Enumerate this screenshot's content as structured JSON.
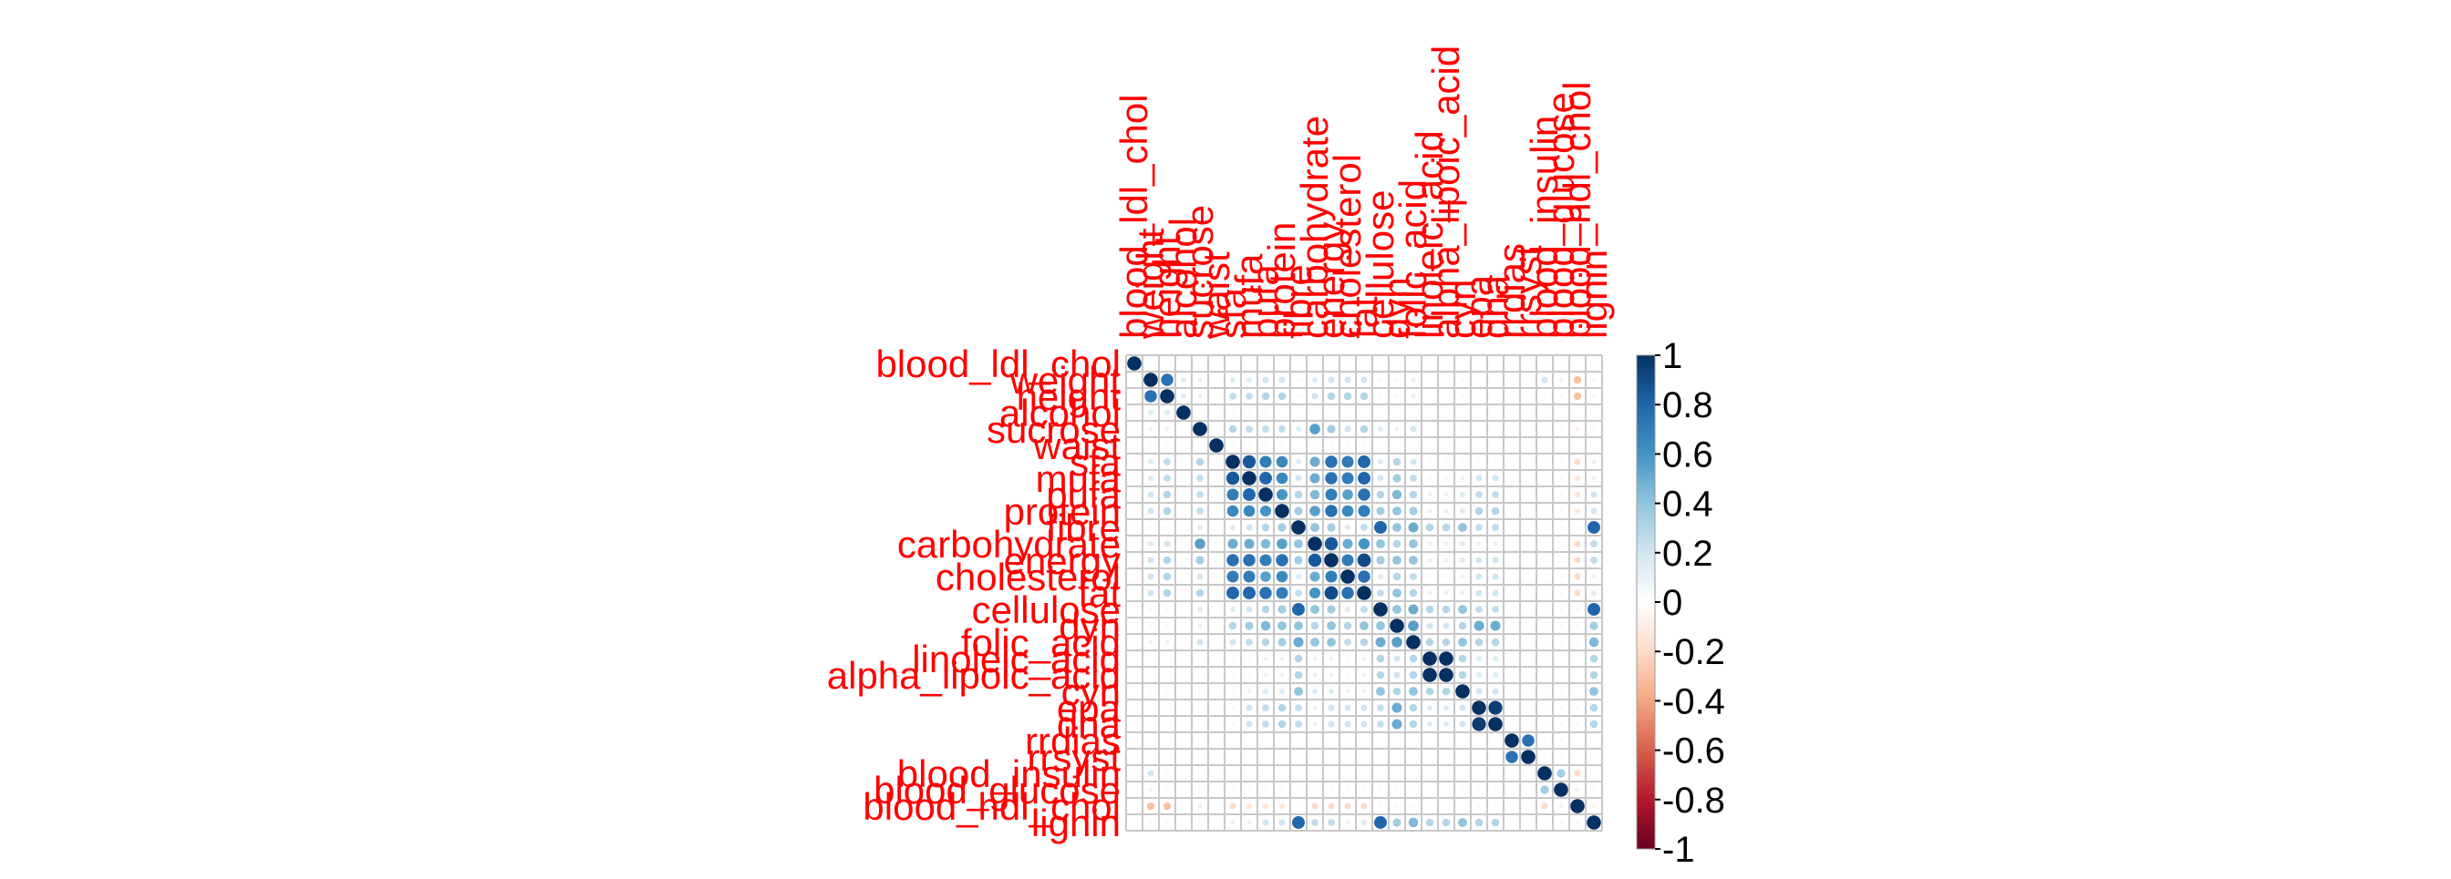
{
  "chart_data": {
    "type": "heatmap",
    "style": "correlation-circles",
    "title": "",
    "grid": true,
    "legend_position": "right",
    "label_color": "#ff0000",
    "variables": [
      "blood_ldl_chol",
      "weight",
      "height",
      "alcohol",
      "sucrose",
      "waist",
      "sfa",
      "mufa",
      "pufa",
      "protein",
      "fibre",
      "carbohydrate",
      "energy",
      "cholesterol",
      "fat",
      "cellulose",
      "dyn",
      "folic_acid",
      "linoleic_acid",
      "alpha_lipoic_acid",
      "cyn",
      "epa",
      "dha",
      "rrdias",
      "rrsyst",
      "blood_insulin",
      "blood_glucose",
      "blood_hdl_chol",
      "lignin"
    ],
    "values": [
      [
        1,
        0,
        0,
        0,
        0,
        0,
        0,
        0,
        0,
        0,
        0,
        0,
        0,
        0,
        0,
        0,
        0,
        0,
        0,
        0,
        0,
        0,
        0,
        0,
        0,
        0,
        0,
        0,
        0
      ],
      [
        0,
        1,
        0.75,
        0.15,
        0.1,
        0.05,
        0.15,
        0.15,
        0.2,
        0.2,
        0.05,
        0.15,
        0.2,
        0.2,
        0.2,
        0.05,
        0.05,
        0.1,
        0,
        0,
        0.05,
        0,
        0,
        0,
        0,
        0.2,
        0.1,
        -0.3,
        0.05
      ],
      [
        0,
        0.75,
        1,
        0.15,
        0.1,
        0.05,
        0.25,
        0.25,
        0.3,
        0.3,
        0.05,
        0.2,
        0.3,
        0.3,
        0.3,
        0.05,
        0.05,
        0.1,
        0,
        0,
        0.05,
        0,
        0,
        0,
        0,
        0.05,
        0.05,
        -0.3,
        0.05
      ],
      [
        0,
        0.15,
        0.15,
        1,
        0.05,
        0,
        0.05,
        0.05,
        0.05,
        0,
        0,
        0,
        0,
        0,
        0,
        0,
        0,
        0,
        0,
        0,
        0,
        0,
        0,
        0,
        0,
        0,
        0,
        0,
        0
      ],
      [
        0,
        0.1,
        0.1,
        0.05,
        1,
        0,
        0.3,
        0.25,
        0.25,
        0.25,
        0.15,
        0.55,
        0.35,
        0.2,
        0.3,
        0.15,
        0.1,
        0.2,
        0,
        0,
        0.05,
        0,
        0,
        0,
        0,
        0,
        0.05,
        -0.1,
        0.05
      ],
      [
        0,
        0.05,
        0.05,
        0,
        0,
        1,
        0.05,
        0.05,
        0.05,
        0.05,
        0,
        0.05,
        0.05,
        0.05,
        0.05,
        0,
        0,
        0,
        0,
        0,
        0,
        0,
        0,
        0,
        0,
        0,
        0,
        0,
        0
      ],
      [
        0,
        0.15,
        0.25,
        0.05,
        0.3,
        0.05,
        1,
        0.85,
        0.7,
        0.65,
        0.15,
        0.5,
        0.75,
        0.7,
        0.8,
        0.15,
        0.3,
        0.2,
        0.05,
        0.05,
        0.05,
        0.05,
        0.05,
        0,
        0,
        0,
        0.05,
        -0.2,
        0.1
      ],
      [
        0,
        0.15,
        0.25,
        0.05,
        0.25,
        0.05,
        0.85,
        1,
        0.8,
        0.65,
        0.2,
        0.5,
        0.75,
        0.7,
        0.8,
        0.2,
        0.35,
        0.25,
        0.05,
        0.05,
        0.1,
        0.2,
        0.2,
        0,
        0,
        0,
        0.05,
        -0.15,
        0.1
      ],
      [
        0,
        0.2,
        0.3,
        0.05,
        0.25,
        0.05,
        0.7,
        0.8,
        1,
        0.6,
        0.3,
        0.45,
        0.7,
        0.55,
        0.75,
        0.3,
        0.45,
        0.3,
        0.1,
        0.1,
        0.15,
        0.25,
        0.25,
        0,
        0,
        0,
        0.05,
        -0.15,
        0.2
      ],
      [
        0,
        0.2,
        0.3,
        0,
        0.25,
        0.05,
        0.65,
        0.65,
        0.6,
        1,
        0.35,
        0.55,
        0.75,
        0.65,
        0.7,
        0.35,
        0.4,
        0.35,
        0.1,
        0.1,
        0.15,
        0.3,
        0.3,
        0,
        0,
        0,
        0.05,
        -0.15,
        0.2
      ],
      [
        0,
        0.05,
        0.05,
        0,
        0.15,
        0,
        0.15,
        0.2,
        0.3,
        0.35,
        1,
        0.4,
        0.35,
        0.15,
        0.25,
        0.8,
        0.4,
        0.5,
        0.3,
        0.3,
        0.4,
        0.25,
        0.25,
        0,
        0,
        0,
        0.05,
        -0.05,
        0.8
      ],
      [
        0,
        0.15,
        0.2,
        0,
        0.55,
        0.05,
        0.5,
        0.5,
        0.45,
        0.55,
        0.4,
        1,
        0.85,
        0.5,
        0.6,
        0.4,
        0.3,
        0.4,
        0.1,
        0.1,
        0.15,
        0.1,
        0.1,
        0,
        0,
        0,
        0.05,
        -0.2,
        0.25
      ],
      [
        0,
        0.2,
        0.3,
        0,
        0.35,
        0.05,
        0.75,
        0.75,
        0.7,
        0.75,
        0.35,
        0.85,
        1,
        0.7,
        0.9,
        0.35,
        0.4,
        0.4,
        0.1,
        0.1,
        0.15,
        0.2,
        0.2,
        0,
        0,
        0,
        0.05,
        -0.2,
        0.25
      ],
      [
        0,
        0.2,
        0.3,
        0,
        0.2,
        0.05,
        0.7,
        0.7,
        0.55,
        0.65,
        0.15,
        0.5,
        0.7,
        1,
        0.75,
        0.15,
        0.3,
        0.25,
        0.05,
        0.05,
        0.1,
        0.2,
        0.2,
        0,
        0,
        0,
        0.05,
        -0.2,
        0.1
      ],
      [
        0,
        0.2,
        0.3,
        0,
        0.3,
        0.05,
        0.8,
        0.8,
        0.75,
        0.7,
        0.25,
        0.6,
        0.9,
        0.75,
        1,
        0.25,
        0.4,
        0.3,
        0.1,
        0.1,
        0.1,
        0.2,
        0.2,
        0,
        0,
        0,
        0.05,
        -0.2,
        0.15
      ],
      [
        0,
        0.05,
        0.05,
        0,
        0.15,
        0,
        0.15,
        0.2,
        0.3,
        0.35,
        0.8,
        0.4,
        0.35,
        0.15,
        0.25,
        1,
        0.4,
        0.5,
        0.3,
        0.3,
        0.4,
        0.25,
        0.25,
        0,
        0,
        0,
        0.05,
        -0.05,
        0.8
      ],
      [
        0,
        0.05,
        0.05,
        0,
        0.1,
        0,
        0.3,
        0.35,
        0.45,
        0.4,
        0.4,
        0.3,
        0.4,
        0.3,
        0.4,
        0.4,
        1,
        0.55,
        0.2,
        0.2,
        0.3,
        0.5,
        0.5,
        0,
        0,
        0,
        0.05,
        -0.05,
        0.35
      ],
      [
        0,
        0.1,
        0.1,
        0,
        0.2,
        0,
        0.2,
        0.25,
        0.3,
        0.35,
        0.5,
        0.4,
        0.4,
        0.25,
        0.3,
        0.5,
        0.55,
        1,
        0.3,
        0.3,
        0.4,
        0.3,
        0.3,
        0,
        0,
        0,
        0.05,
        -0.05,
        0.45
      ],
      [
        0,
        0,
        0,
        0,
        0,
        0,
        0.05,
        0.05,
        0.1,
        0.1,
        0.3,
        0.1,
        0.1,
        0.05,
        0.1,
        0.3,
        0.2,
        0.3,
        1,
        1,
        0.3,
        0.15,
        0.15,
        0,
        0,
        0,
        0,
        0,
        0.3
      ],
      [
        0,
        0,
        0,
        0,
        0,
        0,
        0.05,
        0.05,
        0.1,
        0.1,
        0.3,
        0.1,
        0.1,
        0.05,
        0.1,
        0.3,
        0.2,
        0.3,
        1,
        1,
        0.3,
        0.15,
        0.15,
        0,
        0,
        0,
        0,
        0,
        0.3
      ],
      [
        0,
        0.05,
        0.05,
        0,
        0.05,
        0,
        0.05,
        0.1,
        0.15,
        0.15,
        0.4,
        0.15,
        0.15,
        0.1,
        0.1,
        0.4,
        0.3,
        0.4,
        0.3,
        0.3,
        1,
        0.2,
        0.2,
        0,
        0,
        0,
        0.05,
        0,
        0.4
      ],
      [
        0,
        0,
        0,
        0,
        0,
        0,
        0.05,
        0.2,
        0.25,
        0.3,
        0.25,
        0.1,
        0.2,
        0.2,
        0.2,
        0.25,
        0.5,
        0.3,
        0.15,
        0.15,
        0.2,
        1,
        0.95,
        0,
        0,
        0,
        0.05,
        -0.05,
        0.3
      ],
      [
        0,
        0,
        0,
        0,
        0,
        0,
        0.05,
        0.2,
        0.25,
        0.3,
        0.25,
        0.1,
        0.2,
        0.2,
        0.2,
        0.25,
        0.5,
        0.3,
        0.15,
        0.15,
        0.2,
        0.95,
        1,
        0,
        0,
        0,
        0.05,
        -0.05,
        0.3
      ],
      [
        0,
        0,
        0,
        0,
        0,
        0,
        0,
        0,
        0,
        0,
        0,
        0,
        0,
        0,
        0,
        0,
        0,
        0,
        0,
        0,
        0,
        0,
        0,
        1,
        0.75,
        0.05,
        0.05,
        0,
        0
      ],
      [
        0,
        0,
        0,
        0,
        0,
        0,
        0,
        0,
        0,
        0,
        0,
        0,
        0,
        0,
        0,
        0,
        0,
        0,
        0,
        0,
        0,
        0,
        0,
        0.75,
        1,
        0.05,
        0.05,
        0,
        0
      ],
      [
        0,
        0.2,
        0.05,
        0,
        0,
        0,
        0,
        0,
        0,
        0,
        0,
        0,
        0,
        0,
        0,
        0,
        0,
        0,
        0,
        0,
        0,
        0,
        0,
        0.05,
        0.05,
        1,
        0.35,
        -0.2,
        0
      ],
      [
        0,
        0.1,
        0.05,
        0,
        0.05,
        0,
        0.05,
        0.05,
        0.05,
        0.05,
        0.05,
        0.05,
        0.05,
        0.05,
        0.05,
        0.05,
        0.05,
        0.05,
        0,
        0,
        0.05,
        0.05,
        0.05,
        0.05,
        0.05,
        0.35,
        1,
        -0.1,
        0.05
      ],
      [
        0,
        -0.3,
        -0.3,
        0,
        -0.1,
        0,
        -0.2,
        -0.15,
        -0.15,
        -0.15,
        -0.05,
        -0.2,
        -0.2,
        -0.2,
        -0.2,
        -0.05,
        -0.05,
        -0.05,
        0,
        0,
        0,
        -0.05,
        -0.05,
        0,
        0,
        -0.2,
        -0.1,
        1,
        -0.05
      ],
      [
        0,
        0.05,
        0.05,
        0,
        0.05,
        0,
        0.1,
        0.1,
        0.2,
        0.2,
        0.8,
        0.25,
        0.25,
        0.1,
        0.15,
        0.8,
        0.35,
        0.45,
        0.3,
        0.3,
        0.4,
        0.3,
        0.3,
        0,
        0,
        0,
        0.05,
        -0.05,
        1
      ]
    ],
    "colorbar": {
      "ticks": [
        "1",
        "0.8",
        "0.6",
        "0.4",
        "0.2",
        "0",
        "-0.2",
        "-0.4",
        "-0.6",
        "-0.8",
        "-1"
      ],
      "range": [
        -1,
        1
      ],
      "colors": [
        "#67001f",
        "#b2182b",
        "#d6604d",
        "#f4a582",
        "#fddbc7",
        "#ffffff",
        "#d1e5f0",
        "#92c5de",
        "#4393c3",
        "#2166ac",
        "#053061"
      ]
    }
  }
}
